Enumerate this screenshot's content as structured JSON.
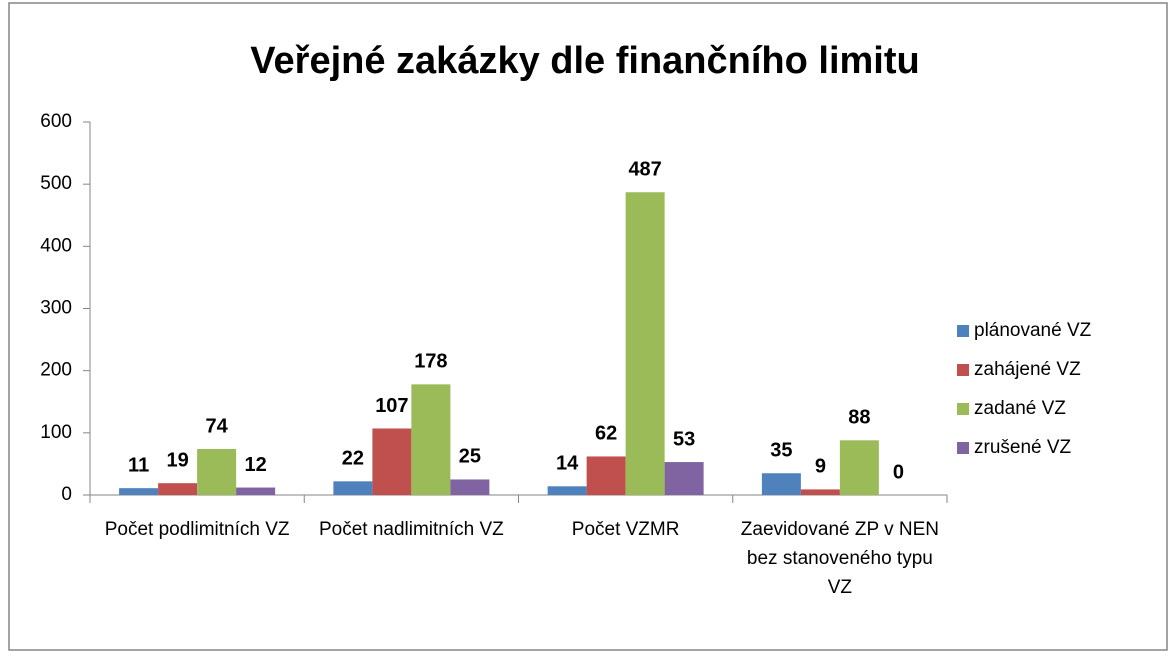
{
  "chart_data": {
    "type": "bar",
    "title": "Veřejné zakázky dle finančního limitu",
    "categories": [
      "Počet podlimitních VZ",
      "Počet nadlimitních VZ",
      "Počet VZMR",
      "Zaevidované ZP v NEN bez stanoveného typu VZ"
    ],
    "series": [
      {
        "name": "plánované VZ",
        "color": "#4f81bd",
        "values": [
          11,
          22,
          14,
          35
        ]
      },
      {
        "name": "zahájené VZ",
        "color": "#c0504d",
        "values": [
          19,
          107,
          62,
          9
        ]
      },
      {
        "name": "zadané VZ",
        "color": "#9bbb59",
        "values": [
          74,
          178,
          487,
          88
        ]
      },
      {
        "name": "zrušené VZ",
        "color": "#8064a2",
        "values": [
          12,
          25,
          53,
          0
        ]
      }
    ],
    "ylim": [
      0,
      600
    ],
    "yticks": [
      0,
      100,
      200,
      300,
      400,
      500,
      600
    ],
    "grid": false,
    "legend": "right"
  }
}
